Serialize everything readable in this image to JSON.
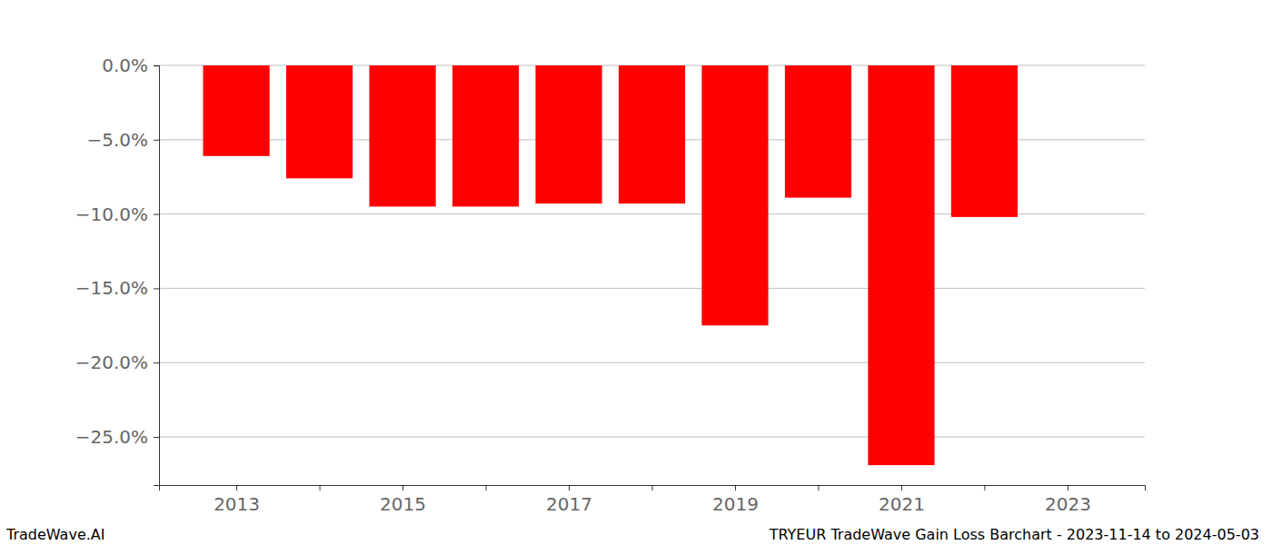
{
  "chart_data": {
    "type": "bar",
    "title": "TRYEUR TradeWave Gain Loss Barchart - 2023-11-14 to 2024-05-03",
    "annotations": [
      "TradeWave.AI"
    ],
    "x": [
      2013,
      2014,
      2015,
      2016,
      2017,
      2018,
      2019,
      2020,
      2021,
      2022
    ],
    "values": [
      -6.1,
      -7.6,
      -9.5,
      -9.5,
      -9.3,
      -9.3,
      -17.5,
      -8.9,
      -26.9,
      -10.2
    ],
    "color": "#ff0000",
    "xlim": [
      2012.07,
      2023.93
    ],
    "xticks": [
      {
        "value": 2013,
        "label": "2013"
      },
      {
        "value": 2014,
        "label": null
      },
      {
        "value": 2015,
        "label": "2015"
      },
      {
        "value": 2016,
        "label": null
      },
      {
        "value": 2017,
        "label": "2017"
      },
      {
        "value": 2018,
        "label": null
      },
      {
        "value": 2019,
        "label": "2019"
      },
      {
        "value": 2020,
        "label": null
      },
      {
        "value": 2021,
        "label": "2021"
      },
      {
        "value": 2022,
        "label": null
      },
      {
        "value": 2023,
        "label": "2023"
      }
    ],
    "ylim": [
      -28.24,
      0
    ],
    "yticks": [
      {
        "value": 0,
        "label": "0.0%"
      },
      {
        "value": -5,
        "label": "−5.0%"
      },
      {
        "value": -10,
        "label": "−10.0%"
      },
      {
        "value": -15,
        "label": "−15.0%"
      },
      {
        "value": -20,
        "label": "−20.0%"
      },
      {
        "value": -25,
        "label": "−25.0%"
      }
    ],
    "grid": true
  }
}
